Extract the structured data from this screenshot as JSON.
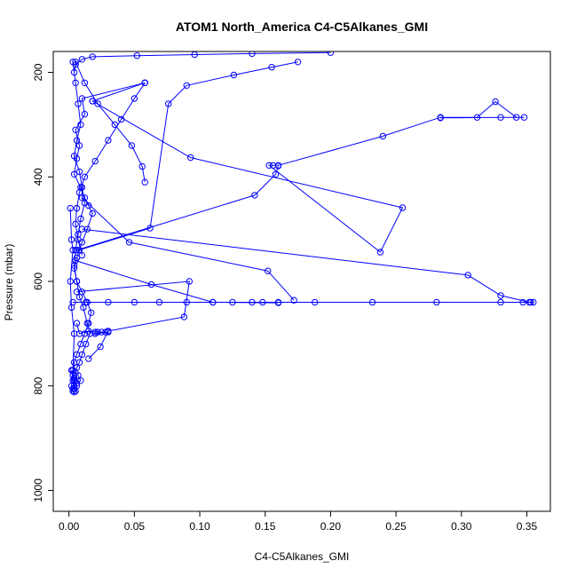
{
  "chart_data": {
    "type": "line",
    "title": "ATOM1 North_America C4-C5Alkanes_GMI",
    "xlabel": "C4-C5Alkanes_GMI",
    "ylabel": "Pressure (mbar)",
    "xlim": [
      -0.012,
      0.368
    ],
    "ylim": [
      1040,
      160
    ],
    "y_reversed": true,
    "x_ticks": [
      0.0,
      0.05,
      0.1,
      0.15,
      0.2,
      0.25,
      0.3,
      0.35
    ],
    "x_tick_labels": [
      "0.00",
      "0.05",
      "0.10",
      "0.15",
      "0.20",
      "0.25",
      "0.30",
      "0.35"
    ],
    "y_ticks": [
      200,
      400,
      600,
      800,
      1000
    ],
    "y_tick_labels": [
      "200",
      "400",
      "600",
      "800",
      "1000"
    ],
    "series_color": "#0000ff",
    "marker": "open-circle",
    "grid": false,
    "series": [
      {
        "x": [
          0.003,
          0.005,
          0.007,
          0.009,
          0.006,
          0.004,
          0.008,
          0.01,
          0.012,
          0.009,
          0.007,
          0.005,
          0.004,
          0.006,
          0.008,
          0.011,
          0.014,
          0.016,
          0.013,
          0.01,
          0.008,
          0.006,
          0.005,
          0.007,
          0.009,
          0.006,
          0.004,
          0.003,
          0.004,
          0.003,
          0.002,
          0.003,
          0.004,
          0.005
        ],
        "y": [
          180,
          220,
          260,
          300,
          330,
          360,
          390,
          420,
          450,
          480,
          510,
          540,
          570,
          600,
          630,
          650,
          680,
          700,
          720,
          740,
          755,
          765,
          775,
          780,
          790,
          795,
          800,
          805,
          790,
          780,
          770,
          790,
          805,
          810
        ]
      },
      {
        "x": [
          0.058,
          0.01,
          0.012,
          0.005,
          0.008,
          0.006,
          0.004,
          0.009,
          0.012,
          0.015,
          0.018,
          0.014,
          0.01,
          0.006,
          0.004,
          0.006,
          0.01,
          0.014,
          0.017,
          0.015,
          0.012,
          0.009,
          0.006,
          0.004,
          0.003,
          0.004,
          0.006
        ],
        "y": [
          220,
          250,
          280,
          310,
          340,
          365,
          395,
          420,
          440,
          455,
          470,
          500,
          525,
          555,
          575,
          600,
          620,
          640,
          660,
          680,
          700,
          720,
          740,
          755,
          770,
          785,
          800
        ]
      },
      {
        "x": [
          0.058,
          0.05,
          0.04,
          0.03,
          0.02,
          0.012,
          0.008,
          0.006,
          0.005,
          0.007,
          0.01
        ],
        "y": [
          220,
          250,
          290,
          330,
          370,
          400,
          430,
          460,
          490,
          520,
          550
        ]
      },
      {
        "x": [
          0.005,
          0.012,
          0.022,
          0.035,
          0.048,
          0.056,
          0.058
        ],
        "y": [
          180,
          220,
          260,
          300,
          340,
          380,
          410
        ]
      },
      {
        "x": [
          0.004,
          0.005,
          0.01,
          0.018,
          0.052,
          0.096,
          0.14,
          0.2
        ],
        "y": [
          200,
          185,
          175,
          170,
          168,
          166,
          164,
          162
        ]
      },
      {
        "x": [
          0.018,
          0.058
        ],
        "y": [
          255,
          220
        ]
      },
      {
        "x": [
          0.018,
          0.093,
          0.255,
          0.238,
          0.153,
          0.156,
          0.16,
          0.24,
          0.284,
          0.312,
          0.326,
          0.342,
          0.348,
          0.33,
          0.284
        ],
        "y": [
          255,
          363,
          459,
          544,
          378,
          378,
          378,
          322,
          286,
          286,
          256,
          286,
          286,
          286,
          287
        ]
      },
      {
        "x": [
          0.008,
          0.062,
          0.076,
          0.09,
          0.126,
          0.155,
          0.175
        ],
        "y": [
          540,
          498,
          260,
          225,
          205,
          190,
          180
        ]
      },
      {
        "x": [
          0.006,
          0.142,
          0.158,
          0.16
        ],
        "y": [
          540,
          435,
          395,
          379
        ]
      },
      {
        "x": [
          0.01,
          0.046,
          0.152,
          0.172
        ],
        "y": [
          440,
          525,
          580,
          636
        ]
      },
      {
        "x": [
          0.01,
          0.305,
          0.33,
          0.352
        ],
        "y": [
          500,
          588,
          627,
          640
        ]
      },
      {
        "x": [
          0.003,
          0.013,
          0.03,
          0.05,
          0.069,
          0.09,
          0.11,
          0.125,
          0.14,
          0.148,
          0.16,
          0.188,
          0.232,
          0.281,
          0.33,
          0.347,
          0.353,
          0.355
        ],
        "y": [
          640,
          640,
          640,
          640,
          640,
          640,
          640,
          640,
          640,
          640,
          640,
          640,
          640,
          640,
          640,
          640,
          640,
          640
        ]
      },
      {
        "x": [
          0.005,
          0.063,
          0.11,
          0.16
        ],
        "y": [
          560,
          606,
          640,
          641
        ]
      },
      {
        "x": [
          0.006,
          0.092,
          0.088,
          0.03,
          0.024,
          0.015
        ],
        "y": [
          620,
          600,
          668,
          695,
          725,
          748
        ]
      },
      {
        "x": [
          0.006,
          0.008,
          0.015,
          0.02,
          0.03,
          0.028,
          0.025,
          0.022,
          0.02
        ],
        "y": [
          680,
          700,
          695,
          700,
          697,
          697,
          697,
          697,
          697
        ]
      },
      {
        "x": [
          0.001,
          0.002,
          0.003,
          0.001,
          0.002,
          0.004,
          0.003,
          0.002,
          0.003,
          0.004
        ],
        "y": [
          460,
          520,
          540,
          600,
          650,
          700,
          770,
          800,
          810,
          812
        ]
      }
    ]
  }
}
